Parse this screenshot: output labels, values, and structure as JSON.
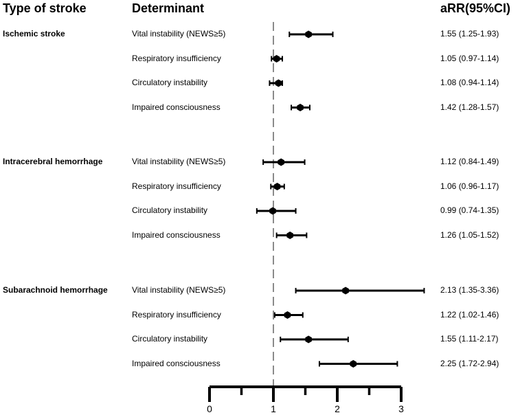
{
  "headers": {
    "type_of_stroke": "Type of stroke",
    "determinant": "Determinant",
    "arr": "aRR(95%CI)"
  },
  "chart_data": {
    "type": "forest",
    "title": "",
    "x_axis": {
      "range": [
        0,
        3
      ],
      "ticks": [
        0,
        1,
        2,
        3
      ],
      "minor_ticks": [
        0.5,
        1.5,
        2.5
      ],
      "reference_line": 1
    },
    "groups": [
      {
        "name": "Ischemic stroke",
        "rows": [
          {
            "determinant": "Vital instability (NEWS≥5)",
            "rr": 1.55,
            "lo": 1.25,
            "hi": 1.93,
            "label": "1.55 (1.25-1.93)"
          },
          {
            "determinant": "Respiratory insufficiency",
            "rr": 1.05,
            "lo": 0.97,
            "hi": 1.14,
            "label": "1.05 (0.97-1.14)"
          },
          {
            "determinant": "Circulatory instability",
            "rr": 1.08,
            "lo": 0.94,
            "hi": 1.14,
            "label": "1.08 (0.94-1.14)"
          },
          {
            "determinant": "Impaired consciousness",
            "rr": 1.42,
            "lo": 1.28,
            "hi": 1.57,
            "label": "1.42 (1.28-1.57)"
          }
        ]
      },
      {
        "name": "Intracerebral hemorrhage",
        "rows": [
          {
            "determinant": "Vital instability (NEWS≥5)",
            "rr": 1.12,
            "lo": 0.84,
            "hi": 1.49,
            "label": "1.12 (0.84-1.49)"
          },
          {
            "determinant": "Respiratory insufficiency",
            "rr": 1.06,
            "lo": 0.96,
            "hi": 1.17,
            "label": "1.06 (0.96-1.17)"
          },
          {
            "determinant": "Circulatory instability",
            "rr": 0.99,
            "lo": 0.74,
            "hi": 1.35,
            "label": "0.99 (0.74-1.35)"
          },
          {
            "determinant": "Impaired consciousness",
            "rr": 1.26,
            "lo": 1.05,
            "hi": 1.52,
            "label": "1.26 (1.05-1.52)"
          }
        ]
      },
      {
        "name": "Subarachnoid hemorrhage",
        "rows": [
          {
            "determinant": "Vital instability (NEWS≥5)",
            "rr": 2.13,
            "lo": 1.35,
            "hi": 3.36,
            "label": "2.13 (1.35-3.36)"
          },
          {
            "determinant": "Respiratory insufficiency",
            "rr": 1.22,
            "lo": 1.02,
            "hi": 1.46,
            "label": "1.22 (1.02-1.46)"
          },
          {
            "determinant": "Circulatory instability",
            "rr": 1.55,
            "lo": 1.11,
            "hi": 2.17,
            "label": "1.55 (1.11-2.17)"
          },
          {
            "determinant": "Impaired consciousness",
            "rr": 2.25,
            "lo": 1.72,
            "hi": 2.94,
            "label": "2.25 (1.72-2.94)"
          }
        ]
      }
    ]
  }
}
